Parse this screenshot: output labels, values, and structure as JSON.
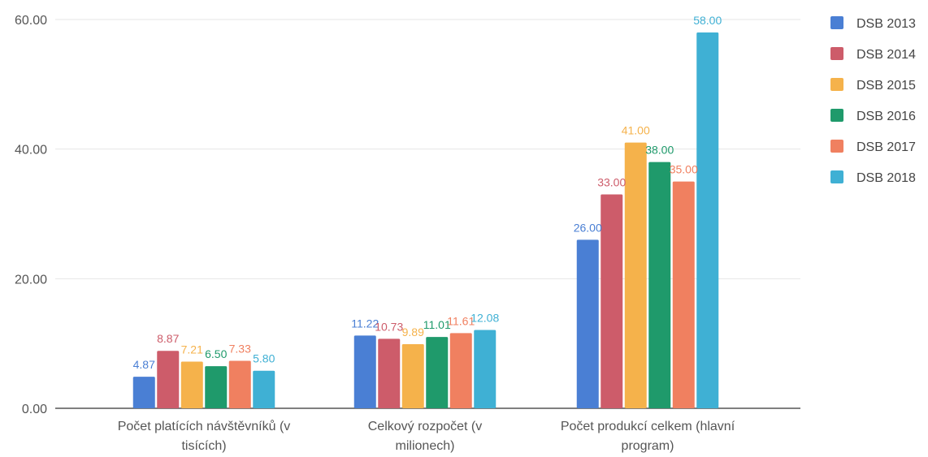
{
  "chart_data": {
    "type": "bar",
    "categories": [
      [
        "Počet platících návštěvníků (v",
        "tisících)"
      ],
      [
        "Celkový rozpočet (v",
        "milionech)"
      ],
      [
        "Počet produkcí celkem (hlavní",
        "program)"
      ]
    ],
    "series": [
      {
        "name": "DSB 2013",
        "color": "#4a7fd4",
        "values": [
          4.87,
          11.22,
          26.0
        ],
        "labels": [
          "4.87",
          "11.22",
          "26.00"
        ]
      },
      {
        "name": "DSB 2014",
        "color": "#cd5c6a",
        "values": [
          8.87,
          10.73,
          33.0
        ],
        "labels": [
          "8.87",
          "10.73",
          "33.00"
        ]
      },
      {
        "name": "DSB 2015",
        "color": "#f5b24b",
        "values": [
          7.21,
          9.89,
          41.0
        ],
        "labels": [
          "7.21",
          "9.89",
          "41.00"
        ]
      },
      {
        "name": "DSB 2016",
        "color": "#1f9a6b",
        "values": [
          6.5,
          11.01,
          38.0
        ],
        "labels": [
          "6.50",
          "11.01",
          "38.00"
        ]
      },
      {
        "name": "DSB 2017",
        "color": "#f08060",
        "values": [
          7.33,
          11.61,
          35.0
        ],
        "labels": [
          "7.33",
          "11.61",
          "35.00"
        ]
      },
      {
        "name": "DSB 2018",
        "color": "#3fb0d4",
        "values": [
          5.8,
          12.08,
          58.0
        ],
        "labels": [
          "5.80",
          "12.08",
          "58.00"
        ]
      }
    ],
    "yticks": [
      "0.00",
      "20.00",
      "40.00",
      "60.00"
    ],
    "ylim": [
      0,
      60
    ],
    "grid": true,
    "legend_position": "right"
  }
}
